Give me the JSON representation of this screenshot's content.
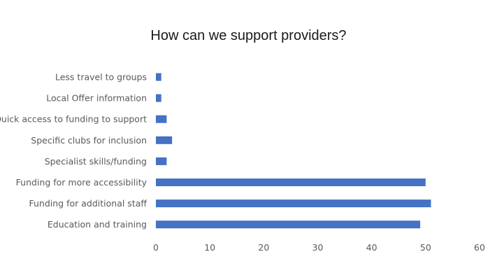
{
  "chart_data": {
    "type": "bar",
    "orientation": "horizontal",
    "title": "How can we support providers?",
    "categories": [
      "Less travel to groups",
      "Local Offer information",
      "Quick access to funding to support",
      "Specific clubs for inclusion",
      "Specialist skills/funding",
      "Funding for more accessibility",
      "Funding for additional staff",
      "Education and training"
    ],
    "values": [
      1,
      1,
      2,
      3,
      2,
      50,
      51,
      49
    ],
    "xlim": [
      0,
      60
    ],
    "xticks": [
      0,
      10,
      20,
      30,
      40,
      50,
      60
    ],
    "grid": false,
    "legend": "none",
    "bar_color": "#4472C4"
  }
}
